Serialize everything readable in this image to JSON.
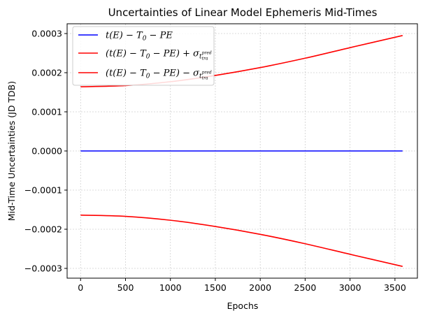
{
  "chart_data": {
    "type": "line",
    "title": "Uncertainties of Linear Model Ephemeris Mid-Times",
    "xlabel": "Epochs",
    "ylabel": "Mid-Time Uncertainties (JD TDB)",
    "xlim": [
      -150,
      3750
    ],
    "ylim": [
      -0.000325,
      0.000325
    ],
    "grid": true,
    "legend_position": "top-left",
    "x_ticks": [
      0,
      500,
      1000,
      1500,
      2000,
      2500,
      3000,
      3500
    ],
    "x_tick_labels": [
      "0",
      "500",
      "1000",
      "1500",
      "2000",
      "2500",
      "3000",
      "3500"
    ],
    "y_ticks": [
      0.0003,
      0.0002,
      0.0001,
      0.0,
      -0.0001,
      -0.0002,
      -0.0003
    ],
    "y_tick_labels": [
      "0.0003",
      "0.0002",
      "0.0001",
      "0.0000",
      "−0.0001",
      "−0.0002",
      "−0.0003"
    ],
    "x": [
      0,
      500,
      1000,
      1500,
      2000,
      2500,
      3000,
      3585
    ],
    "series": [
      {
        "name": "t(E) − T0 − PE",
        "color": "#0000ff",
        "values": [
          0,
          0,
          0,
          0,
          0,
          0,
          0,
          0
        ]
      },
      {
        "name": "(t(E) − T0 − PE) + σ t_tra^pred",
        "color": "#ff0000",
        "values": [
          0.000164,
          0.000167,
          0.000177,
          0.000193,
          0.000213,
          0.000237,
          0.000264,
          0.000295
        ]
      },
      {
        "name": "(t(E) − T0 − PE) − σ t_tra^pred",
        "color": "#ff0000",
        "values": [
          -0.000164,
          -0.000167,
          -0.000177,
          -0.000193,
          -0.000213,
          -0.000237,
          -0.000264,
          -0.000295
        ]
      }
    ]
  },
  "legend": {
    "entries": [
      {
        "main": "t(E) − T",
        "sub0": "0",
        "rest": " − PE",
        "color": "#0000ff"
      },
      {
        "main": "(t(E) − T",
        "sub0": "0",
        "rest": " − PE) + σ",
        "sub": "t",
        "subsub": "tra",
        "sup": "pred",
        "color": "#ff0000"
      },
      {
        "main": "(t(E) − T",
        "sub0": "0",
        "rest": " − PE) − σ",
        "sub": "t",
        "subsub": "tra",
        "sup": "pred",
        "color": "#ff0000"
      }
    ]
  }
}
